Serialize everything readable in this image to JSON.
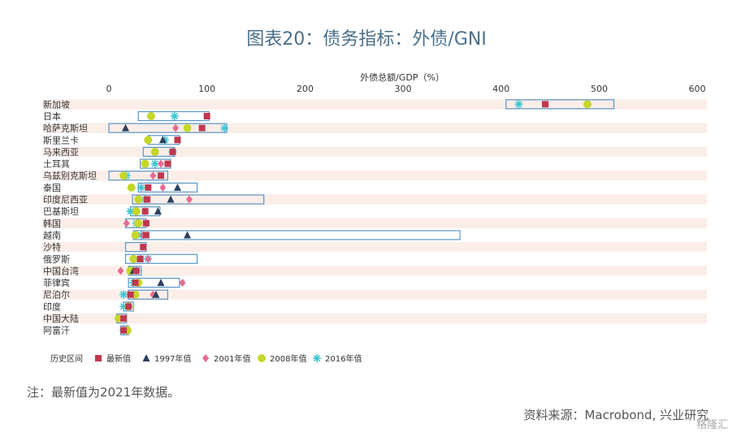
{
  "title": "图表20：债务指标：外债/GNI",
  "note": "注：最新值为2021年数据。",
  "source": "资料来源：Macrobond, 兴业研究",
  "watermark": "格隆汇",
  "colors": {
    "band": "#fbeee8",
    "range": "#5a95c4",
    "latest": "#c0384f",
    "y1997": "#2e3f5c",
    "y2001": "#e66b92",
    "y2008": "#c6d62a",
    "y2016": "#3cc6d3"
  },
  "chart_data": {
    "type": "range-dot",
    "xlabel": "外债总额/GDP（%）",
    "xlim": [
      -10,
      610
    ],
    "xticks": [
      0,
      100,
      200,
      300,
      400,
      500,
      600
    ],
    "legend": [
      "历史区间",
      "最新值",
      "1997年值",
      "2001年值",
      "2008年值",
      "2016年值"
    ],
    "categories": [
      "新加坡",
      "日本",
      "哈萨克斯坦",
      "斯里兰卡",
      "马来西亚",
      "土耳其",
      "乌兹别克斯坦",
      "泰国",
      "印度尼西亚",
      "巴基斯坦",
      "韩国",
      "越南",
      "沙特",
      "俄罗斯",
      "中国台湾",
      "菲律宾",
      "尼泊尔",
      "印度",
      "中国大陆",
      "阿富汗"
    ],
    "range": [
      [
        405,
        515
      ],
      [
        30,
        102
      ],
      [
        0,
        120
      ],
      [
        40,
        72
      ],
      [
        35,
        67
      ],
      [
        32,
        63
      ],
      [
        0,
        60
      ],
      [
        30,
        90
      ],
      [
        24,
        158
      ],
      [
        22,
        52
      ],
      [
        17,
        38
      ],
      [
        25,
        358
      ],
      [
        17,
        38
      ],
      [
        17,
        90
      ],
      [
        20,
        33
      ],
      [
        20,
        72
      ],
      [
        20,
        60
      ],
      [
        15,
        25
      ],
      [
        8,
        18
      ],
      [
        12,
        20
      ]
    ],
    "latest": [
      445,
      100,
      95,
      70,
      65,
      60,
      53,
      40,
      39,
      37,
      38,
      38,
      35,
      32,
      28,
      27,
      22,
      20,
      15,
      15
    ],
    "y1997": [
      null,
      null,
      17,
      55,
      null,
      null,
      null,
      70,
      63,
      50,
      null,
      80,
      null,
      32,
      25,
      53,
      48,
      null,
      null,
      null
    ],
    "y2001": [
      null,
      null,
      68,
      null,
      null,
      53,
      45,
      55,
      82,
      37,
      18,
      35,
      null,
      40,
      12,
      75,
      45,
      null,
      null,
      null
    ],
    "y2008": [
      488,
      43,
      80,
      40,
      47,
      37,
      15,
      23,
      30,
      28,
      30,
      27,
      null,
      25,
      22,
      30,
      27,
      20,
      10,
      19
    ],
    "y2016": [
      418,
      67,
      118,
      57,
      65,
      47,
      18,
      33,
      37,
      22,
      28,
      33,
      null,
      40,
      28,
      25,
      15,
      15,
      null,
      15
    ]
  }
}
